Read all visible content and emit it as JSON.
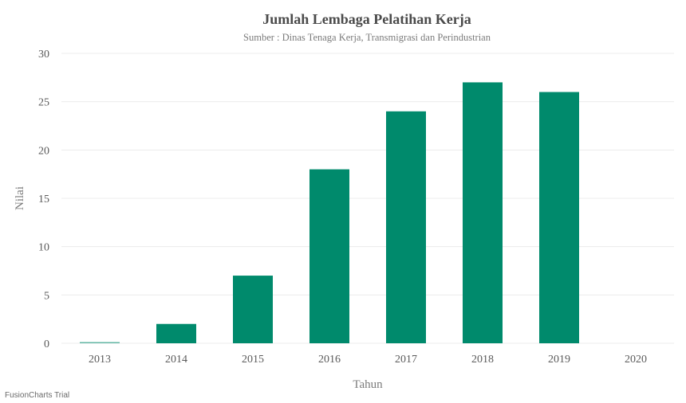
{
  "chart_data": {
    "type": "bar",
    "title": "Jumlah Lembaga Pelatihan Kerja",
    "subtitle": "Sumber : Dinas Tenaga Kerja, Transmigrasi dan Perindustrian",
    "xlabel": "Tahun",
    "ylabel": "Nilai",
    "categories": [
      "2013",
      "2014",
      "2015",
      "2016",
      "2017",
      "2018",
      "2019",
      "2020"
    ],
    "values": [
      0,
      2,
      7,
      18,
      24,
      27,
      26,
      null
    ],
    "ylim": [
      0,
      30
    ],
    "yticks": [
      "0",
      "5",
      "10",
      "15",
      "20",
      "25",
      "30"
    ],
    "grid": true,
    "bar_color": "#008a6c"
  },
  "watermark": "FusionCharts Trial"
}
